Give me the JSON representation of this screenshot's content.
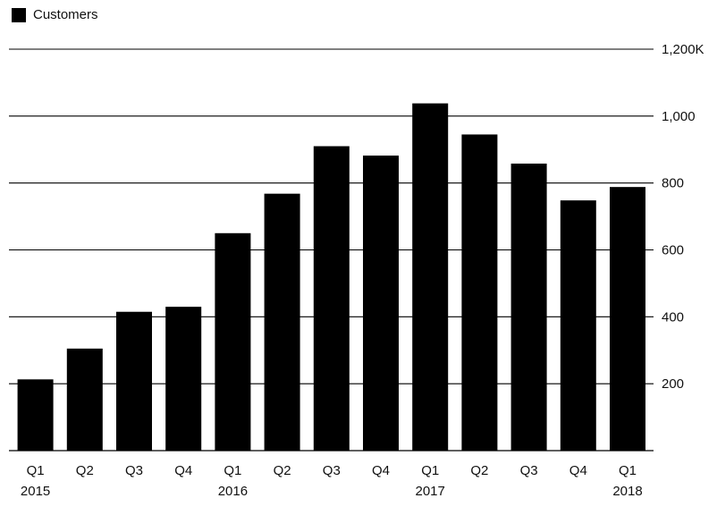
{
  "legend": {
    "label": "Customers"
  },
  "colors": {
    "bar": "#000000",
    "grid": "#000000",
    "text": "#111111"
  },
  "chart_data": {
    "type": "bar",
    "title": "",
    "xlabel": "",
    "ylabel": "",
    "categories": [
      "Q1 2015",
      "Q2 2015",
      "Q3 2015",
      "Q4 2015",
      "Q1 2016",
      "Q2 2016",
      "Q3 2016",
      "Q4 2016",
      "Q1 2017",
      "Q2 2017",
      "Q3 2017",
      "Q4 2017",
      "Q1 2018"
    ],
    "quarter_labels": [
      "Q1",
      "Q2",
      "Q3",
      "Q4",
      "Q1",
      "Q2",
      "Q3",
      "Q4",
      "Q1",
      "Q2",
      "Q3",
      "Q4",
      "Q1"
    ],
    "year_labels": [
      "2015",
      "",
      "",
      "",
      "2016",
      "",
      "",
      "",
      "2017",
      "",
      "",
      "",
      "2018"
    ],
    "series": [
      {
        "name": "Customers",
        "values": [
          213,
          305,
          415,
          430,
          650,
          768,
          910,
          882,
          1038,
          945,
          858,
          748,
          788
        ]
      }
    ],
    "ylim": [
      0,
      1200
    ],
    "y_ticks": [
      {
        "value": 200,
        "label": "200"
      },
      {
        "value": 400,
        "label": "400"
      },
      {
        "value": 600,
        "label": "600"
      },
      {
        "value": 800,
        "label": "800"
      },
      {
        "value": 1000,
        "label": "1,000"
      },
      {
        "value": 1200,
        "label": "1,200K"
      }
    ],
    "y_axis_side": "right",
    "grid": true,
    "legend_position": "top-left"
  }
}
